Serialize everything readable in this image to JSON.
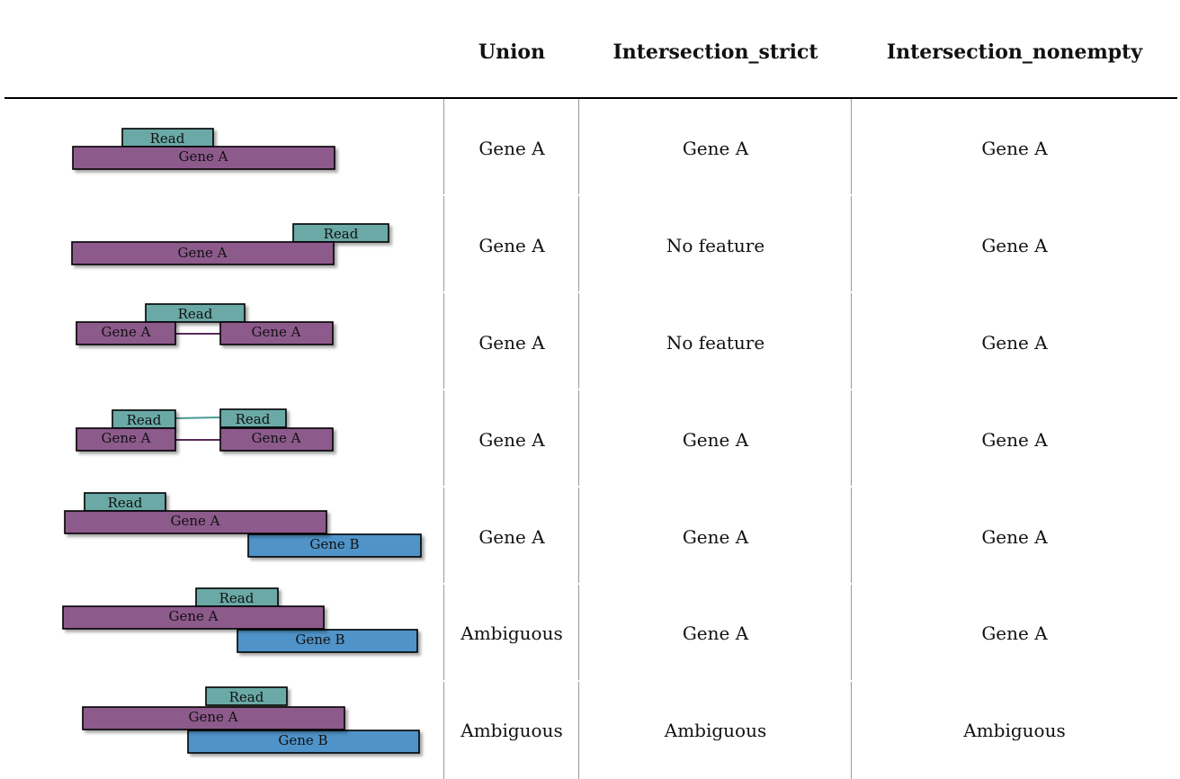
{
  "header": {
    "col1": "Union",
    "col2": "Intersection_strict",
    "col3": "Intersection_nonempty"
  },
  "labels": {
    "read": "Read",
    "gene_a": "Gene A",
    "gene_b": "Gene B"
  },
  "colors": {
    "read": "#6aa9a6",
    "gene_a": "#8d5a8c",
    "gene_b": "#4f93c8"
  },
  "rows": [
    {
      "union": "Gene A",
      "strict": "Gene A",
      "nonempty": "Gene A"
    },
    {
      "union": "Gene A",
      "strict": "No feature",
      "nonempty": "Gene A"
    },
    {
      "union": "Gene A",
      "strict": "No feature",
      "nonempty": "Gene A"
    },
    {
      "union": "Gene A",
      "strict": "Gene A",
      "nonempty": "Gene A"
    },
    {
      "union": "Gene A",
      "strict": "Gene A",
      "nonempty": "Gene A"
    },
    {
      "union": "Ambiguous",
      "strict": "Gene A",
      "nonempty": "Gene A"
    },
    {
      "union": "Ambiguous",
      "strict": "Ambiguous",
      "nonempty": "Ambiguous"
    }
  ]
}
